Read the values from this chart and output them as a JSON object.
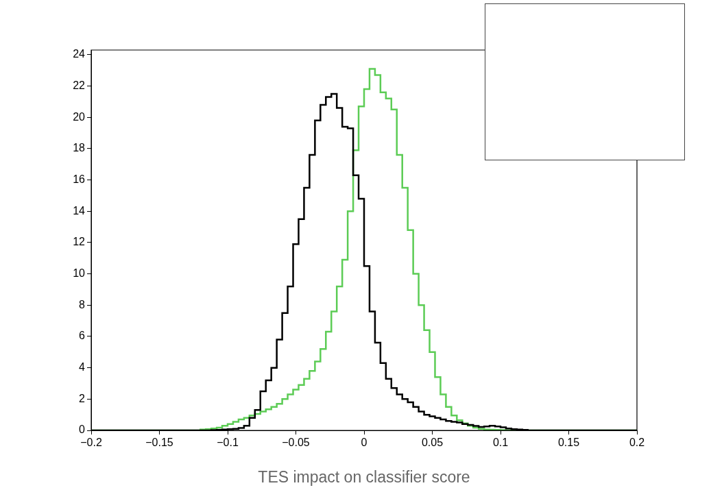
{
  "chart_data": {
    "type": "histogram",
    "xlabel": "TES impact on classifier score",
    "bins": [
      -0.2,
      -0.12,
      -0.116,
      -0.112,
      -0.108,
      -0.104,
      -0.1,
      -0.096,
      -0.092,
      -0.088,
      -0.084,
      -0.08,
      -0.076,
      -0.072,
      -0.068,
      -0.064,
      -0.06,
      -0.056,
      -0.052,
      -0.048,
      -0.044,
      -0.04,
      -0.036,
      -0.032,
      -0.028,
      -0.024,
      -0.02,
      -0.016,
      -0.012,
      -0.008,
      -0.004,
      0,
      0.004,
      0.008,
      0.012,
      0.016,
      0.02,
      0.024,
      0.028,
      0.032,
      0.036,
      0.04,
      0.044,
      0.048,
      0.052,
      0.056,
      0.06,
      0.064,
      0.068,
      0.072,
      0.076,
      0.08,
      0.084,
      0.088,
      0.092,
      0.096,
      0.1,
      0.104,
      0.108,
      0.112,
      0.116,
      0.12,
      0.2
    ],
    "series": [
      {
        "color": "#000000",
        "values": [
          0,
          0,
          0,
          0.02,
          0.03,
          0.05,
          0.08,
          0.1,
          0.15,
          0.3,
          0.8,
          1.3,
          2.5,
          3.2,
          4.0,
          5.8,
          7.5,
          9.2,
          11.9,
          13.5,
          15.5,
          17.6,
          19.8,
          20.8,
          21.3,
          21.5,
          20.6,
          19.4,
          19.3,
          16.3,
          14.8,
          10.5,
          7.6,
          5.6,
          4.3,
          3.3,
          2.7,
          2.3,
          2.0,
          1.8,
          1.5,
          1.2,
          1.0,
          0.9,
          0.8,
          0.7,
          0.6,
          0.55,
          0.5,
          0.4,
          0.35,
          0.28,
          0.22,
          0.25,
          0.3,
          0.25,
          0.2,
          0.12,
          0.08,
          0.05,
          0.03,
          0
        ]
      },
      {
        "color": "#5ccc55",
        "values": [
          0,
          0.05,
          0.08,
          0.12,
          0.18,
          0.3,
          0.4,
          0.55,
          0.7,
          0.8,
          0.95,
          1.05,
          1.2,
          1.35,
          1.5,
          1.7,
          2.0,
          2.3,
          2.6,
          2.9,
          3.3,
          3.8,
          4.4,
          5.2,
          6.3,
          7.6,
          9.2,
          10.9,
          14.0,
          17.9,
          20.7,
          21.8,
          23.1,
          22.7,
          21.6,
          21.2,
          20.5,
          17.6,
          15.5,
          12.8,
          10.0,
          8.0,
          6.4,
          5.0,
          3.4,
          2.3,
          1.5,
          0.95,
          0.65,
          0.45,
          0.3,
          0.18,
          0.1,
          0.06,
          0.04,
          0.03,
          0.02,
          0.01,
          0.01,
          0,
          0,
          0
        ]
      }
    ],
    "xlim": [
      -0.2,
      0.2
    ],
    "xticks": [
      {
        "value": -0.2,
        "label": "−0.2"
      },
      {
        "value": -0.15,
        "label": "−0.15"
      },
      {
        "value": -0.1,
        "label": "−0.1"
      },
      {
        "value": -0.05,
        "label": "−0.05"
      },
      0,
      0.05,
      0.1,
      0.15,
      0.2
    ],
    "ylim": [
      0,
      24.3
    ],
    "yticks": [
      0,
      2,
      4,
      6,
      8,
      10,
      12,
      14,
      16,
      18,
      20,
      22,
      24
    ],
    "grid": false,
    "legend": false
  }
}
